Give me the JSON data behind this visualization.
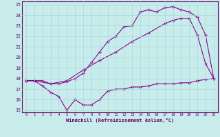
{
  "title": "",
  "xlabel": "Windchill (Refroidissement éolien,°C)",
  "ylabel": "",
  "bg_color": "#c8ecec",
  "line_color": "#880088",
  "grid_color": "#a8d8d8",
  "axis_color": "#660066",
  "tick_color": "#660066",
  "xlim": [
    -0.5,
    23.5
  ],
  "ylim": [
    14.8,
    25.3
  ],
  "yticks": [
    15,
    16,
    17,
    18,
    19,
    20,
    21,
    22,
    23,
    24,
    25
  ],
  "xticks": [
    0,
    1,
    2,
    3,
    4,
    5,
    6,
    7,
    8,
    9,
    10,
    11,
    12,
    13,
    14,
    15,
    16,
    17,
    18,
    19,
    20,
    21,
    22,
    23
  ],
  "line1_x": [
    0,
    1,
    2,
    3,
    4,
    5,
    6,
    7,
    8,
    9,
    10,
    11,
    12,
    13,
    14,
    15,
    16,
    17,
    18,
    19,
    20,
    21,
    22,
    23
  ],
  "line1_y": [
    17.8,
    17.8,
    17.8,
    17.5,
    17.5,
    17.7,
    18.0,
    18.5,
    19.5,
    20.5,
    21.5,
    22.0,
    22.9,
    23.0,
    24.3,
    24.5,
    24.3,
    24.7,
    24.8,
    24.5,
    24.3,
    23.8,
    22.1,
    18.0
  ],
  "line2_x": [
    0,
    1,
    3,
    5,
    7,
    9,
    11,
    13,
    15,
    17,
    18,
    19,
    20,
    21,
    22,
    23
  ],
  "line2_y": [
    17.8,
    17.8,
    17.5,
    17.8,
    18.8,
    19.7,
    20.5,
    21.5,
    22.3,
    23.2,
    23.5,
    23.7,
    23.7,
    22.1,
    19.4,
    18.0
  ],
  "line3_x": [
    0,
    1,
    2,
    3,
    4,
    5,
    6,
    7,
    8,
    9,
    10,
    11,
    12,
    13,
    14,
    15,
    16,
    17,
    18,
    19,
    20,
    21,
    22,
    23
  ],
  "line3_y": [
    17.8,
    17.8,
    17.3,
    16.7,
    16.3,
    15.0,
    16.0,
    15.5,
    15.5,
    16.0,
    16.8,
    17.0,
    17.0,
    17.2,
    17.2,
    17.3,
    17.5,
    17.5,
    17.5,
    17.6,
    17.6,
    17.8,
    17.9,
    18.0
  ]
}
